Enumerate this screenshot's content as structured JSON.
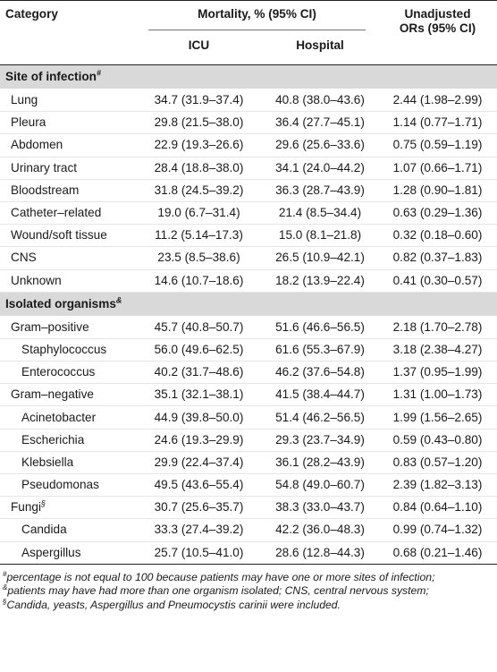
{
  "header": {
    "category": "Category",
    "mortality": "Mortality, % (95% CI)",
    "icu": "ICU",
    "hospital": "Hospital",
    "unadjusted_line1": "Unadjusted",
    "unadjusted_line2": "ORs (95% CI)"
  },
  "sections": [
    {
      "title": "Site of infection",
      "mark": "#",
      "rows": [
        {
          "name": "Lung",
          "icu": "34.7 (31.9–37.4)",
          "hospital": "40.8 (38.0–43.6)",
          "or": "2.44 (1.98–2.99)"
        },
        {
          "name": "Pleura",
          "icu": "29.8 (21.5–38.0)",
          "hospital": "36.4 (27.7–45.1)",
          "or": "1.14 (0.77–1.71)"
        },
        {
          "name": "Abdomen",
          "icu": "22.9 (19.3–26.6)",
          "hospital": "29.6 (25.6–33.6)",
          "or": "0.75 (0.59–1.19)"
        },
        {
          "name": "Urinary tract",
          "icu": "28.4 (18.8–38.0)",
          "hospital": "34.1 (24.0–44.2)",
          "or": "1.07 (0.66–1.71)"
        },
        {
          "name": "Bloodstream",
          "icu": "31.8 (24.5–39.2)",
          "hospital": "36.3 (28.7–43.9)",
          "or": "1.28 (0.90–1.81)"
        },
        {
          "name": "Catheter–related",
          "icu": "19.0 (6.7–31.4)",
          "hospital": "21.4 (8.5–34.4)",
          "or": "0.63 (0.29–1.36)"
        },
        {
          "name": "Wound/soft tissue",
          "icu": "11.2 (5.14–17.3)",
          "hospital": "15.0 (8.1–21.8)",
          "or": "0.32 (0.18–0.60)"
        },
        {
          "name": "CNS",
          "icu": "23.5 (8.5–38.6)",
          "hospital": "26.5 (10.9–42.1)",
          "or": "0.82 (0.37–1.83)"
        },
        {
          "name": "Unknown",
          "icu": "14.6 (10.7–18.6)",
          "hospital": "18.2 (13.9–22.4)",
          "or": "0.41 (0.30–0.57)"
        }
      ]
    },
    {
      "title": "Isolated organisms",
      "mark": "&",
      "rows": [
        {
          "name": "Gram–positive",
          "level": 1,
          "icu": "45.7 (40.8–50.7)",
          "hospital": "51.6 (46.6–56.5)",
          "or": "2.18 (1.70–2.78)"
        },
        {
          "name": "Staphylococcus",
          "level": 2,
          "icu": "56.0 (49.6–62.5)",
          "hospital": "61.6 (55.3–67.9)",
          "or": "3.18 (2.38–4.27)"
        },
        {
          "name": "Enterococcus",
          "level": 2,
          "icu": "40.2 (31.7–48.6)",
          "hospital": "46.2 (37.6–54.8)",
          "or": "1.37 (0.95–1.99)"
        },
        {
          "name": "Gram–negative",
          "level": 1,
          "icu": "35.1 (32.1–38.1)",
          "hospital": "41.5 (38.4–44.7)",
          "or": "1.31 (1.00–1.73)"
        },
        {
          "name": "Acinetobacter",
          "level": 2,
          "icu": "44.9 (39.8–50.0)",
          "hospital": "51.4 (46.2–56.5)",
          "or": "1.99 (1.56–2.65)"
        },
        {
          "name": "Escherichia",
          "level": 2,
          "icu": "24.6 (19.3–29.9)",
          "hospital": "29.3 (23.7–34.9)",
          "or": "0.59 (0.43–0.80)"
        },
        {
          "name": "Klebsiella",
          "level": 2,
          "icu": "29.9 (22.4–37.4)",
          "hospital": "36.1 (28.2–43.9)",
          "or": "0.83 (0.57–1.20)"
        },
        {
          "name": "Pseudomonas",
          "level": 2,
          "icu": "49.5 (43.6–55.4)",
          "hospital": "54.8 (49.0–60.7)",
          "or": "2.39 (1.82–3.13)"
        },
        {
          "name": "Fungi",
          "mark": "§",
          "level": 1,
          "icu": "30.7 (25.6–35.7)",
          "hospital": "38.3 (33.0–43.7)",
          "or": "0.84 (0.64–1.10)"
        },
        {
          "name": "Candida",
          "level": 2,
          "icu": "33.3 (27.4–39.2)",
          "hospital": "42.2 (36.0–48.3)",
          "or": "0.99 (0.74–1.32)"
        },
        {
          "name": "Aspergillus",
          "level": 2,
          "icu": "25.7 (10.5–41.0)",
          "hospital": "28.6 (12.8–44.3)",
          "or": "0.68 (0.21–1.46)"
        }
      ]
    }
  ],
  "footnotes": [
    {
      "mark": "#",
      "text": "percentage is not equal to 100 because patients may have one or more sites of infection;"
    },
    {
      "mark": "&",
      "text": "patients may have had more than one organism isolated; CNS, central nervous system;"
    },
    {
      "mark": "§",
      "text": "Candida, yeasts, Aspergillus and Pneumocystis carinii were included."
    }
  ]
}
